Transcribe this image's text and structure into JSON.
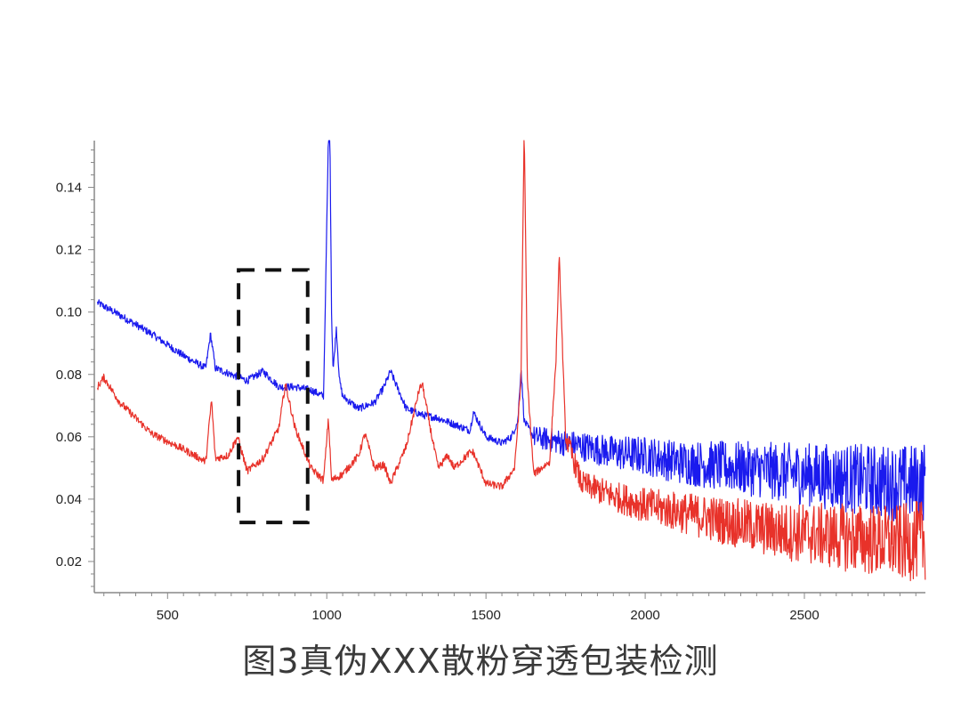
{
  "caption": "图3真伪XXX散粉穿透包装检测",
  "chart_data": {
    "type": "line",
    "title": "",
    "xlabel": "",
    "ylabel": "",
    "xlim": [
      270,
      2880
    ],
    "ylim": [
      0.01,
      0.155
    ],
    "x_ticks": [
      500,
      1000,
      1500,
      2000,
      2500
    ],
    "y_ticks": [
      0.02,
      0.04,
      0.06,
      0.08,
      0.1,
      0.12,
      0.14
    ],
    "x_tick_labels": [
      "500",
      "1000",
      "1500",
      "2000",
      "2500"
    ],
    "y_tick_labels": [
      "0.02",
      "0.04",
      "0.06",
      "0.08",
      "0.10",
      "0.12",
      "0.14"
    ],
    "grid": false,
    "legend": false,
    "series": [
      {
        "color": "#1a1aee",
        "x": [
          280,
          350,
          450,
          550,
          620,
          635,
          650,
          700,
          750,
          800,
          850,
          900,
          950,
          990,
          1005,
          1010,
          1015,
          1020,
          1030,
          1040,
          1050,
          1100,
          1150,
          1180,
          1200,
          1250,
          1300,
          1350,
          1400,
          1450,
          1460,
          1500,
          1550,
          1580,
          1600,
          1610,
          1620,
          1650,
          1700,
          1750,
          1800,
          1900,
          2000,
          2100,
          2200,
          2300,
          2400,
          2500,
          2600,
          2700,
          2800,
          2850,
          2880
        ],
        "y": [
          0.103,
          0.099,
          0.093,
          0.086,
          0.082,
          0.093,
          0.082,
          0.08,
          0.078,
          0.081,
          0.076,
          0.076,
          0.075,
          0.073,
          0.155,
          0.156,
          0.1,
          0.081,
          0.095,
          0.078,
          0.073,
          0.069,
          0.071,
          0.076,
          0.081,
          0.069,
          0.067,
          0.066,
          0.064,
          0.062,
          0.068,
          0.06,
          0.058,
          0.06,
          0.065,
          0.082,
          0.065,
          0.06,
          0.059,
          0.058,
          0.057,
          0.055,
          0.054,
          0.052,
          0.051,
          0.05,
          0.049,
          0.048,
          0.047,
          0.046,
          0.045,
          0.045,
          0.046
        ],
        "noise_after_x": 1650
      },
      {
        "color": "#e8322a",
        "x": [
          280,
          300,
          350,
          450,
          550,
          620,
          638,
          650,
          690,
          720,
          750,
          800,
          850,
          870,
          900,
          950,
          990,
          1005,
          1015,
          1050,
          1100,
          1120,
          1150,
          1180,
          1200,
          1250,
          1290,
          1300,
          1330,
          1350,
          1380,
          1400,
          1450,
          1460,
          1500,
          1550,
          1590,
          1610,
          1620,
          1630,
          1650,
          1700,
          1720,
          1730,
          1750,
          1800,
          1900,
          2000,
          2100,
          2200,
          2300,
          2400,
          2500,
          2600,
          2700,
          2800,
          2880
        ],
        "y": [
          0.076,
          0.079,
          0.071,
          0.061,
          0.056,
          0.052,
          0.072,
          0.053,
          0.054,
          0.06,
          0.049,
          0.053,
          0.063,
          0.077,
          0.063,
          0.05,
          0.046,
          0.066,
          0.046,
          0.048,
          0.054,
          0.061,
          0.05,
          0.051,
          0.045,
          0.057,
          0.075,
          0.077,
          0.06,
          0.05,
          0.054,
          0.05,
          0.055,
          0.055,
          0.045,
          0.044,
          0.05,
          0.078,
          0.16,
          0.078,
          0.048,
          0.052,
          0.085,
          0.118,
          0.06,
          0.045,
          0.041,
          0.038,
          0.036,
          0.034,
          0.032,
          0.03,
          0.029,
          0.028,
          0.027,
          0.026,
          0.027
        ],
        "noise_after_x": 1750
      }
    ],
    "annotations": [
      {
        "type": "dashed-rectangle",
        "x_range": [
          723,
          940
        ],
        "y_range": [
          0.0325,
          0.1135
        ],
        "color": "#111111"
      }
    ]
  }
}
